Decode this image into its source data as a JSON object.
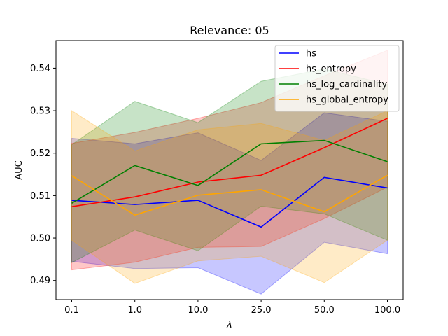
{
  "chart_data": {
    "type": "line",
    "title": "Relevance: 05",
    "xlabel": "λ",
    "ylabel": "AUC",
    "categories": [
      "0.1",
      "1.0",
      "10.0",
      "25.0",
      "50.0",
      "100.0"
    ],
    "ylim": [
      0.4855,
      0.5465
    ],
    "yticks": [
      0.49,
      0.5,
      0.51,
      0.52,
      0.53,
      0.54
    ],
    "ytick_labels": [
      "0.49",
      "0.50",
      "0.51",
      "0.52",
      "0.53",
      "0.54"
    ],
    "grid": false,
    "legend_position": "top-right",
    "series": [
      {
        "name": "hs",
        "color": "#0000ff",
        "values": [
          0.5089,
          0.5079,
          0.5089,
          0.5026,
          0.5143,
          0.5118
        ],
        "upper": [
          0.5235,
          0.5222,
          0.5248,
          0.5183,
          0.5295,
          0.5275
        ],
        "lower": [
          0.4945,
          0.4928,
          0.493,
          0.4868,
          0.499,
          0.4963
        ]
      },
      {
        "name": "hs_entropy",
        "color": "#ff0000",
        "values": [
          0.5074,
          0.5097,
          0.5132,
          0.5148,
          0.5213,
          0.5282
        ],
        "upper": [
          0.5223,
          0.5249,
          0.5282,
          0.5319,
          0.5382,
          0.5442
        ],
        "lower": [
          0.4925,
          0.4943,
          0.4978,
          0.498,
          0.5046,
          0.512
        ]
      },
      {
        "name": "hs_log_cardinality",
        "color": "#008000",
        "values": [
          0.5082,
          0.5171,
          0.5124,
          0.5222,
          0.523,
          0.518
        ],
        "upper": [
          0.522,
          0.5322,
          0.5272,
          0.5369,
          0.5398,
          0.5362
        ],
        "lower": [
          0.4942,
          0.5019,
          0.497,
          0.5075,
          0.5057,
          0.4995
        ]
      },
      {
        "name": "hs_global_entropy",
        "color": "#ffa500",
        "values": [
          0.5147,
          0.5054,
          0.5101,
          0.5114,
          0.5062,
          0.5148
        ],
        "upper": [
          0.53,
          0.5205,
          0.5255,
          0.527,
          0.523,
          0.53
        ],
        "lower": [
          0.4995,
          0.4893,
          0.4946,
          0.4957,
          0.4895,
          0.4995
        ]
      }
    ]
  }
}
